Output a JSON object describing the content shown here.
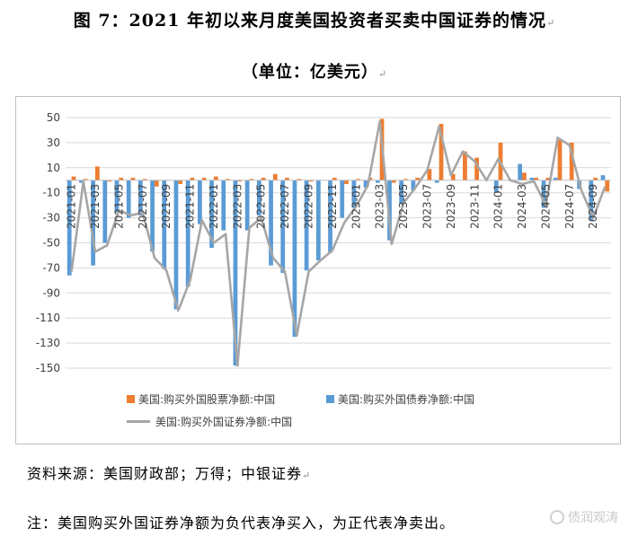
{
  "title": "图 7：2021 年初以来月度美国投资者买卖中国证券的情况",
  "subtitle": "（单位：亿美元）",
  "para_mark": "↵",
  "source": "资料来源：美国财政部；万得；中银证券",
  "note": "注：美国购买外国证券净额为负代表净买入，为正代表净卖出。",
  "watermark": "债润观涛",
  "colors": {
    "equity": "#ed7d31",
    "bond": "#5b9bd5",
    "total": "#a6a6a6",
    "grid": "#d9d9d9",
    "text": "#404040"
  },
  "chart_data": {
    "type": "bar",
    "ylim": [
      -150,
      50
    ],
    "yticks": [
      50,
      30,
      10,
      -10,
      -30,
      -50,
      -70,
      -90,
      -110,
      -130,
      -150
    ],
    "x": [
      "2021-01",
      "2021-02",
      "2021-03",
      "2021-04",
      "2021-05",
      "2021-06",
      "2021-07",
      "2021-08",
      "2021-09",
      "2021-10",
      "2021-11",
      "2021-12",
      "2022-01",
      "2022-02",
      "2022-03",
      "2022-04",
      "2022-05",
      "2022-06",
      "2022-07",
      "2022-08",
      "2022-09",
      "2022-10",
      "2022-11",
      "2022-12",
      "2023-01",
      "2023-02",
      "2023-03",
      "2023-04",
      "2023-05",
      "2023-06",
      "2023-07",
      "2023-08",
      "2023-09",
      "2023-10",
      "2023-11",
      "2023-12",
      "2024-01",
      "2024-02",
      "2024-03",
      "2024-04",
      "2024-05",
      "2024-06",
      "2024-07",
      "2024-08",
      "2024-09",
      "2024-10"
    ],
    "x_labels_shown": [
      "2021-01",
      "2021-03",
      "2021-05",
      "2021-07",
      "2021-09",
      "2021-11",
      "2022-01",
      "2022-03",
      "2022-05",
      "2022-07",
      "2022-09",
      "2022-11",
      "2023-01",
      "2023-03",
      "2023-05",
      "2023-07",
      "2023-09",
      "2023-11",
      "2024-01",
      "2024-03",
      "2024-05",
      "2024-07",
      "2024-09"
    ],
    "series": [
      {
        "name": "美国:购买外国股票净额:中国",
        "type": "bar",
        "values": [
          3,
          1,
          11,
          -1,
          2,
          2,
          1,
          -5,
          0,
          -3,
          2,
          2,
          3,
          1,
          -1,
          1,
          2,
          5,
          2,
          1,
          -1,
          0,
          2,
          -3,
          1,
          2,
          49,
          -2,
          1,
          2,
          9,
          45,
          5,
          23,
          18,
          0,
          30,
          0,
          6,
          2,
          2,
          32,
          30,
          0,
          2,
          -9
        ]
      },
      {
        "name": "美国:购买外国债券净额:中国",
        "type": "bar",
        "values": [
          -76,
          -2,
          -68,
          -50,
          -26,
          -30,
          -28,
          -57,
          -71,
          -103,
          -85,
          -35,
          -54,
          -40,
          -148,
          -40,
          -28,
          -68,
          -74,
          -125,
          -72,
          -64,
          -58,
          -30,
          -22,
          -6,
          -2,
          -48,
          -19,
          -8,
          0,
          -2,
          0,
          0,
          0,
          0,
          -10,
          0,
          13,
          2,
          -22,
          2,
          0,
          -7,
          -32,
          4
        ]
      },
      {
        "name": "美国:购买外国证券净额:中国",
        "type": "line",
        "values": [
          -73,
          -1,
          -57,
          -52,
          -24,
          -28,
          -26,
          -62,
          -72,
          -104,
          -80,
          -32,
          -50,
          -43,
          -148,
          -38,
          -30,
          -62,
          -73,
          -124,
          -73,
          -64,
          -56,
          -34,
          -21,
          -4,
          47,
          -51,
          -18,
          -6,
          8,
          43,
          4,
          23,
          15,
          0,
          17,
          0,
          -3,
          -1,
          -20,
          34,
          28,
          -8,
          -30,
          -5
        ]
      }
    ]
  },
  "legend": {
    "equity": "美国:购买外国股票净额:中国",
    "bond": "美国:购买外国债券净额:中国",
    "total": "美国:购买外国证券净额:中国"
  }
}
